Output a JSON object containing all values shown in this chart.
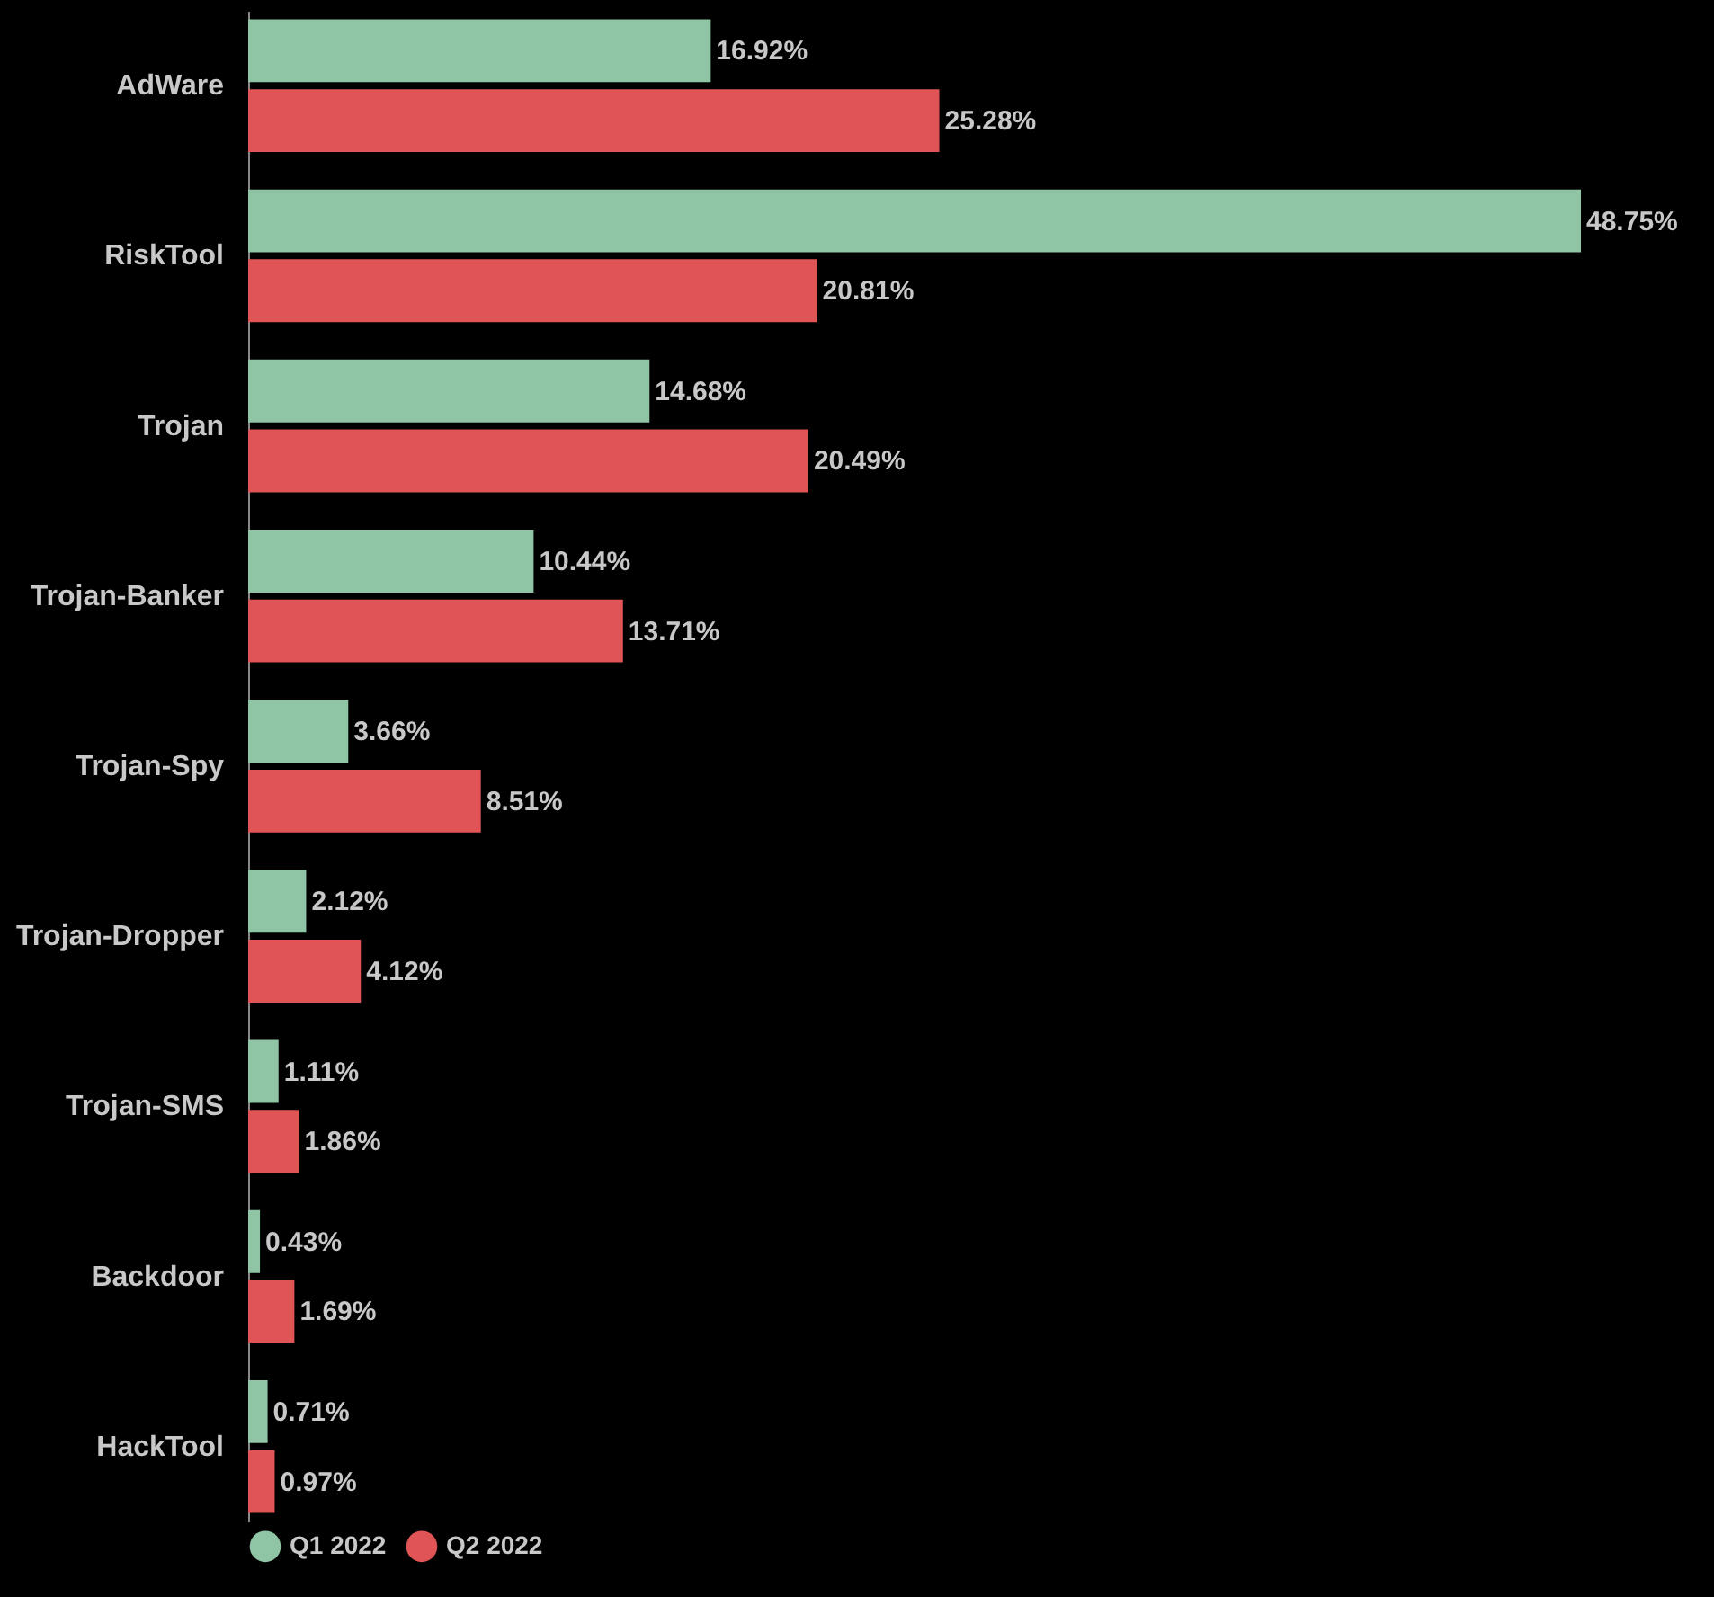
{
  "chart_data": {
    "type": "bar",
    "orientation": "horizontal",
    "legend": "bottom",
    "categories": [
      "AdWare",
      "RiskTool",
      "Trojan",
      "Trojan-Banker",
      "Trojan-Spy",
      "Trojan-Dropper",
      "Trojan-SMS",
      "Backdoor",
      "HackTool"
    ],
    "series": [
      {
        "name": "Q1 2022",
        "color": "#8fc4a4",
        "values": [
          16.92,
          48.75,
          14.68,
          10.44,
          3.66,
          2.12,
          1.11,
          0.43,
          0.71
        ],
        "value_labels": [
          "16.92%",
          "48.75%",
          "14.68%",
          "10.44%",
          "3.66%",
          "2.12%",
          "1.11%",
          "0.43%",
          "0.71%"
        ]
      },
      {
        "name": "Q2 2022",
        "color": "#e05456",
        "values": [
          25.28,
          20.81,
          20.49,
          13.71,
          8.51,
          4.12,
          1.86,
          1.69,
          0.97
        ],
        "value_labels": [
          "25.28%",
          "20.81%",
          "20.49%",
          "13.71%",
          "8.51%",
          "4.12%",
          "1.86%",
          "1.69%",
          "0.97%"
        ]
      }
    ]
  }
}
